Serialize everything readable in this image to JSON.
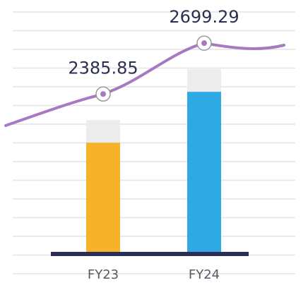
{
  "chart_data": {
    "type": "bar",
    "categories": [
      "FY23",
      "FY24"
    ],
    "values": [
      2385.85,
      2699.29
    ],
    "colors": [
      "#f6b22b",
      "#2ea9e4"
    ],
    "line_color": "#a779c0",
    "ylim": [
      1700,
      2900
    ]
  }
}
